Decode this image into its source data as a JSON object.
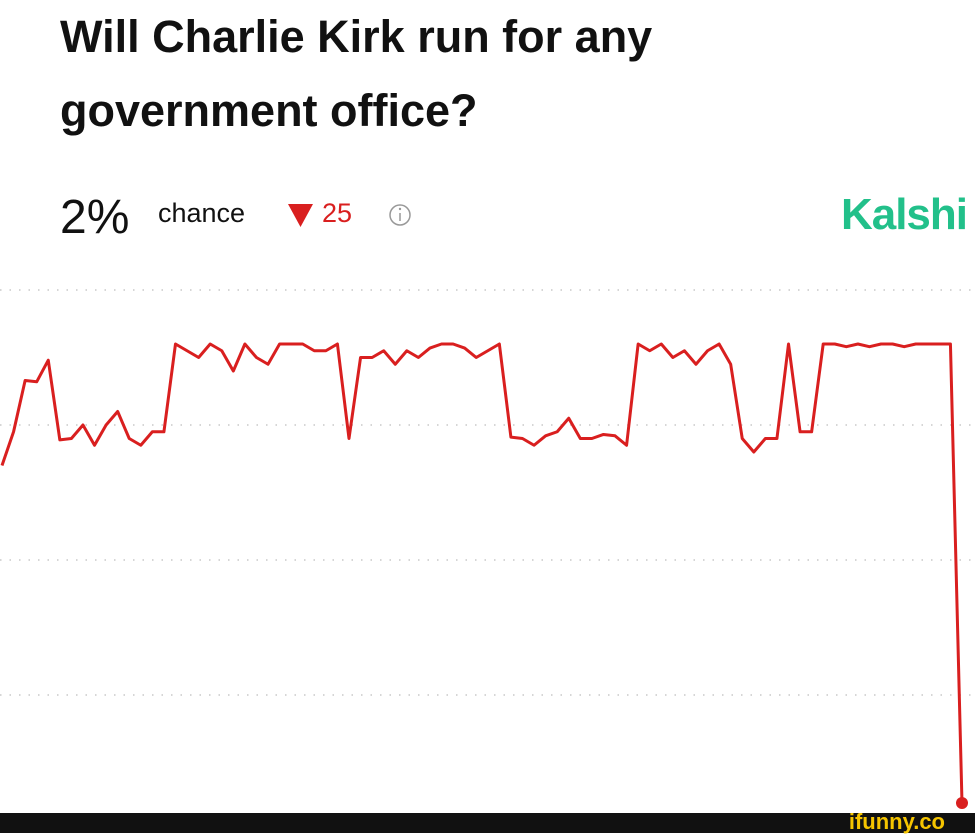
{
  "header": {
    "title": "Will Charlie Kirk run for any government office?",
    "current": "2%",
    "chance_label": "chance",
    "change": "25",
    "brand": "Kalshi"
  },
  "chart_data": {
    "type": "line",
    "color": "#d91f1f",
    "values": [
      27,
      29.5,
      33.3,
      33.2,
      34.8,
      28.9,
      29,
      30,
      28.5,
      30,
      31,
      29,
      28.5,
      29.5,
      29.5,
      36,
      35.5,
      35,
      36,
      35.5,
      34,
      36,
      35,
      34.5,
      36,
      36,
      36,
      35.5,
      35.5,
      36,
      29,
      35,
      35,
      35.5,
      34.5,
      35.5,
      35,
      35.7,
      36,
      36,
      35.7,
      35,
      35.5,
      36,
      29.1,
      29,
      28.5,
      29.2,
      29.5,
      30.5,
      29,
      29,
      29.3,
      29.2,
      28.5,
      36,
      35.5,
      36,
      35,
      35.5,
      34.5,
      35.5,
      36,
      34.5,
      29,
      28,
      29,
      29,
      36,
      29.5,
      29.5,
      36,
      36,
      35.8,
      36,
      35.8,
      36,
      36,
      35.8,
      36,
      36,
      36,
      36,
      2
    ],
    "ylim": [
      0,
      40
    ],
    "yticks": [
      10,
      20,
      30,
      40
    ],
    "grid": true
  },
  "footer": {
    "watermark": "ifunny.co"
  }
}
